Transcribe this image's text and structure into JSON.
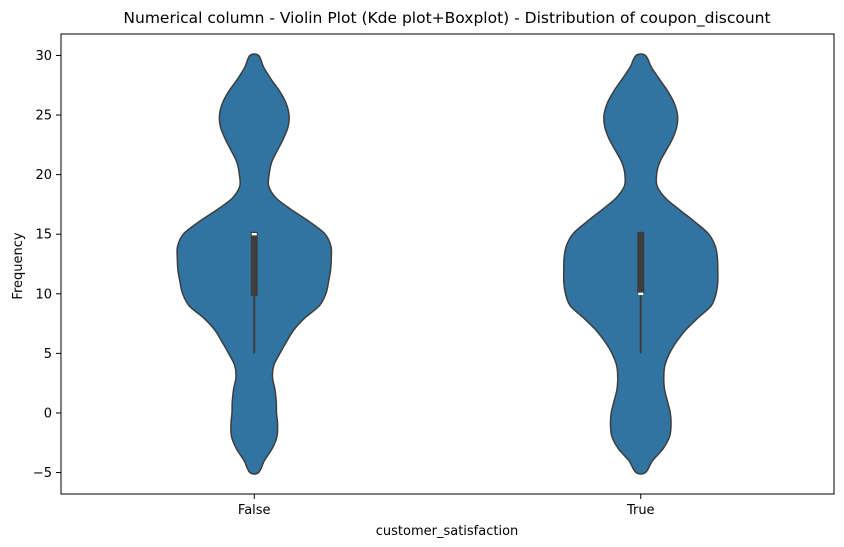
{
  "chart_data": {
    "type": "violin",
    "title": "Numerical column - Violin Plot (Kde plot+Boxplot) - Distribution of  coupon_discount",
    "xlabel": "customer_satisfaction",
    "ylabel": "Frequency",
    "categories": [
      "False",
      "True"
    ],
    "ylim": [
      -6.8,
      31.8
    ],
    "yticks": [
      -5,
      0,
      5,
      10,
      15,
      20,
      25,
      30
    ],
    "grid": false,
    "color": "#3274a1",
    "edge_color": "#3d3d3d",
    "violins": [
      {
        "category": "False",
        "kde_profile": [
          [
            -5,
            0.13
          ],
          [
            -4,
            0.3
          ],
          [
            -3,
            0.53
          ],
          [
            -2,
            0.67
          ],
          [
            -1,
            0.69
          ],
          [
            0,
            0.66
          ],
          [
            1,
            0.65
          ],
          [
            2,
            0.61
          ],
          [
            3,
            0.54
          ],
          [
            4,
            0.58
          ],
          [
            5,
            0.76
          ],
          [
            6,
            0.96
          ],
          [
            7,
            1.18
          ],
          [
            8,
            1.51
          ],
          [
            9,
            1.93
          ],
          [
            10,
            2.12
          ],
          [
            11,
            2.2
          ],
          [
            12,
            2.26
          ],
          [
            13,
            2.28
          ],
          [
            14,
            2.27
          ],
          [
            15,
            2.1
          ],
          [
            16,
            1.66
          ],
          [
            17,
            1.13
          ],
          [
            18,
            0.66
          ],
          [
            19,
            0.43
          ],
          [
            20,
            0.44
          ],
          [
            21,
            0.51
          ],
          [
            22,
            0.68
          ],
          [
            23,
            0.86
          ],
          [
            24,
            1.0
          ],
          [
            25,
            1.03
          ],
          [
            26,
            0.94
          ],
          [
            27,
            0.75
          ],
          [
            28,
            0.5
          ],
          [
            29,
            0.28
          ],
          [
            30,
            0.13
          ]
        ],
        "box": {
          "whisker_low": 5,
          "q1": 9.8,
          "median": 15,
          "q3": 15.2,
          "whisker_high": 15.2
        }
      },
      {
        "category": "True",
        "kde_profile": [
          [
            -5,
            0.13
          ],
          [
            -4,
            0.33
          ],
          [
            -3,
            0.62
          ],
          [
            -2,
            0.8
          ],
          [
            -1,
            0.84
          ],
          [
            0,
            0.82
          ],
          [
            1,
            0.74
          ],
          [
            2,
            0.66
          ],
          [
            3,
            0.64
          ],
          [
            4,
            0.67
          ],
          [
            5,
            0.8
          ],
          [
            6,
            1.0
          ],
          [
            7,
            1.26
          ],
          [
            8,
            1.6
          ],
          [
            9,
            1.96
          ],
          [
            10,
            2.09
          ],
          [
            11,
            2.14
          ],
          [
            12,
            2.14
          ],
          [
            13,
            2.13
          ],
          [
            14,
            2.07
          ],
          [
            15,
            1.89
          ],
          [
            16,
            1.52
          ],
          [
            17,
            1.1
          ],
          [
            18,
            0.7
          ],
          [
            19,
            0.46
          ],
          [
            20,
            0.44
          ],
          [
            21,
            0.52
          ],
          [
            22,
            0.7
          ],
          [
            23,
            0.88
          ],
          [
            24,
            1.0
          ],
          [
            25,
            1.02
          ],
          [
            26,
            0.93
          ],
          [
            27,
            0.75
          ],
          [
            28,
            0.52
          ],
          [
            29,
            0.3
          ],
          [
            30,
            0.13
          ]
        ],
        "box": {
          "whisker_low": 5,
          "q1": 10,
          "median": 10,
          "q3": 15.2,
          "whisker_high": 15.2
        }
      }
    ]
  }
}
